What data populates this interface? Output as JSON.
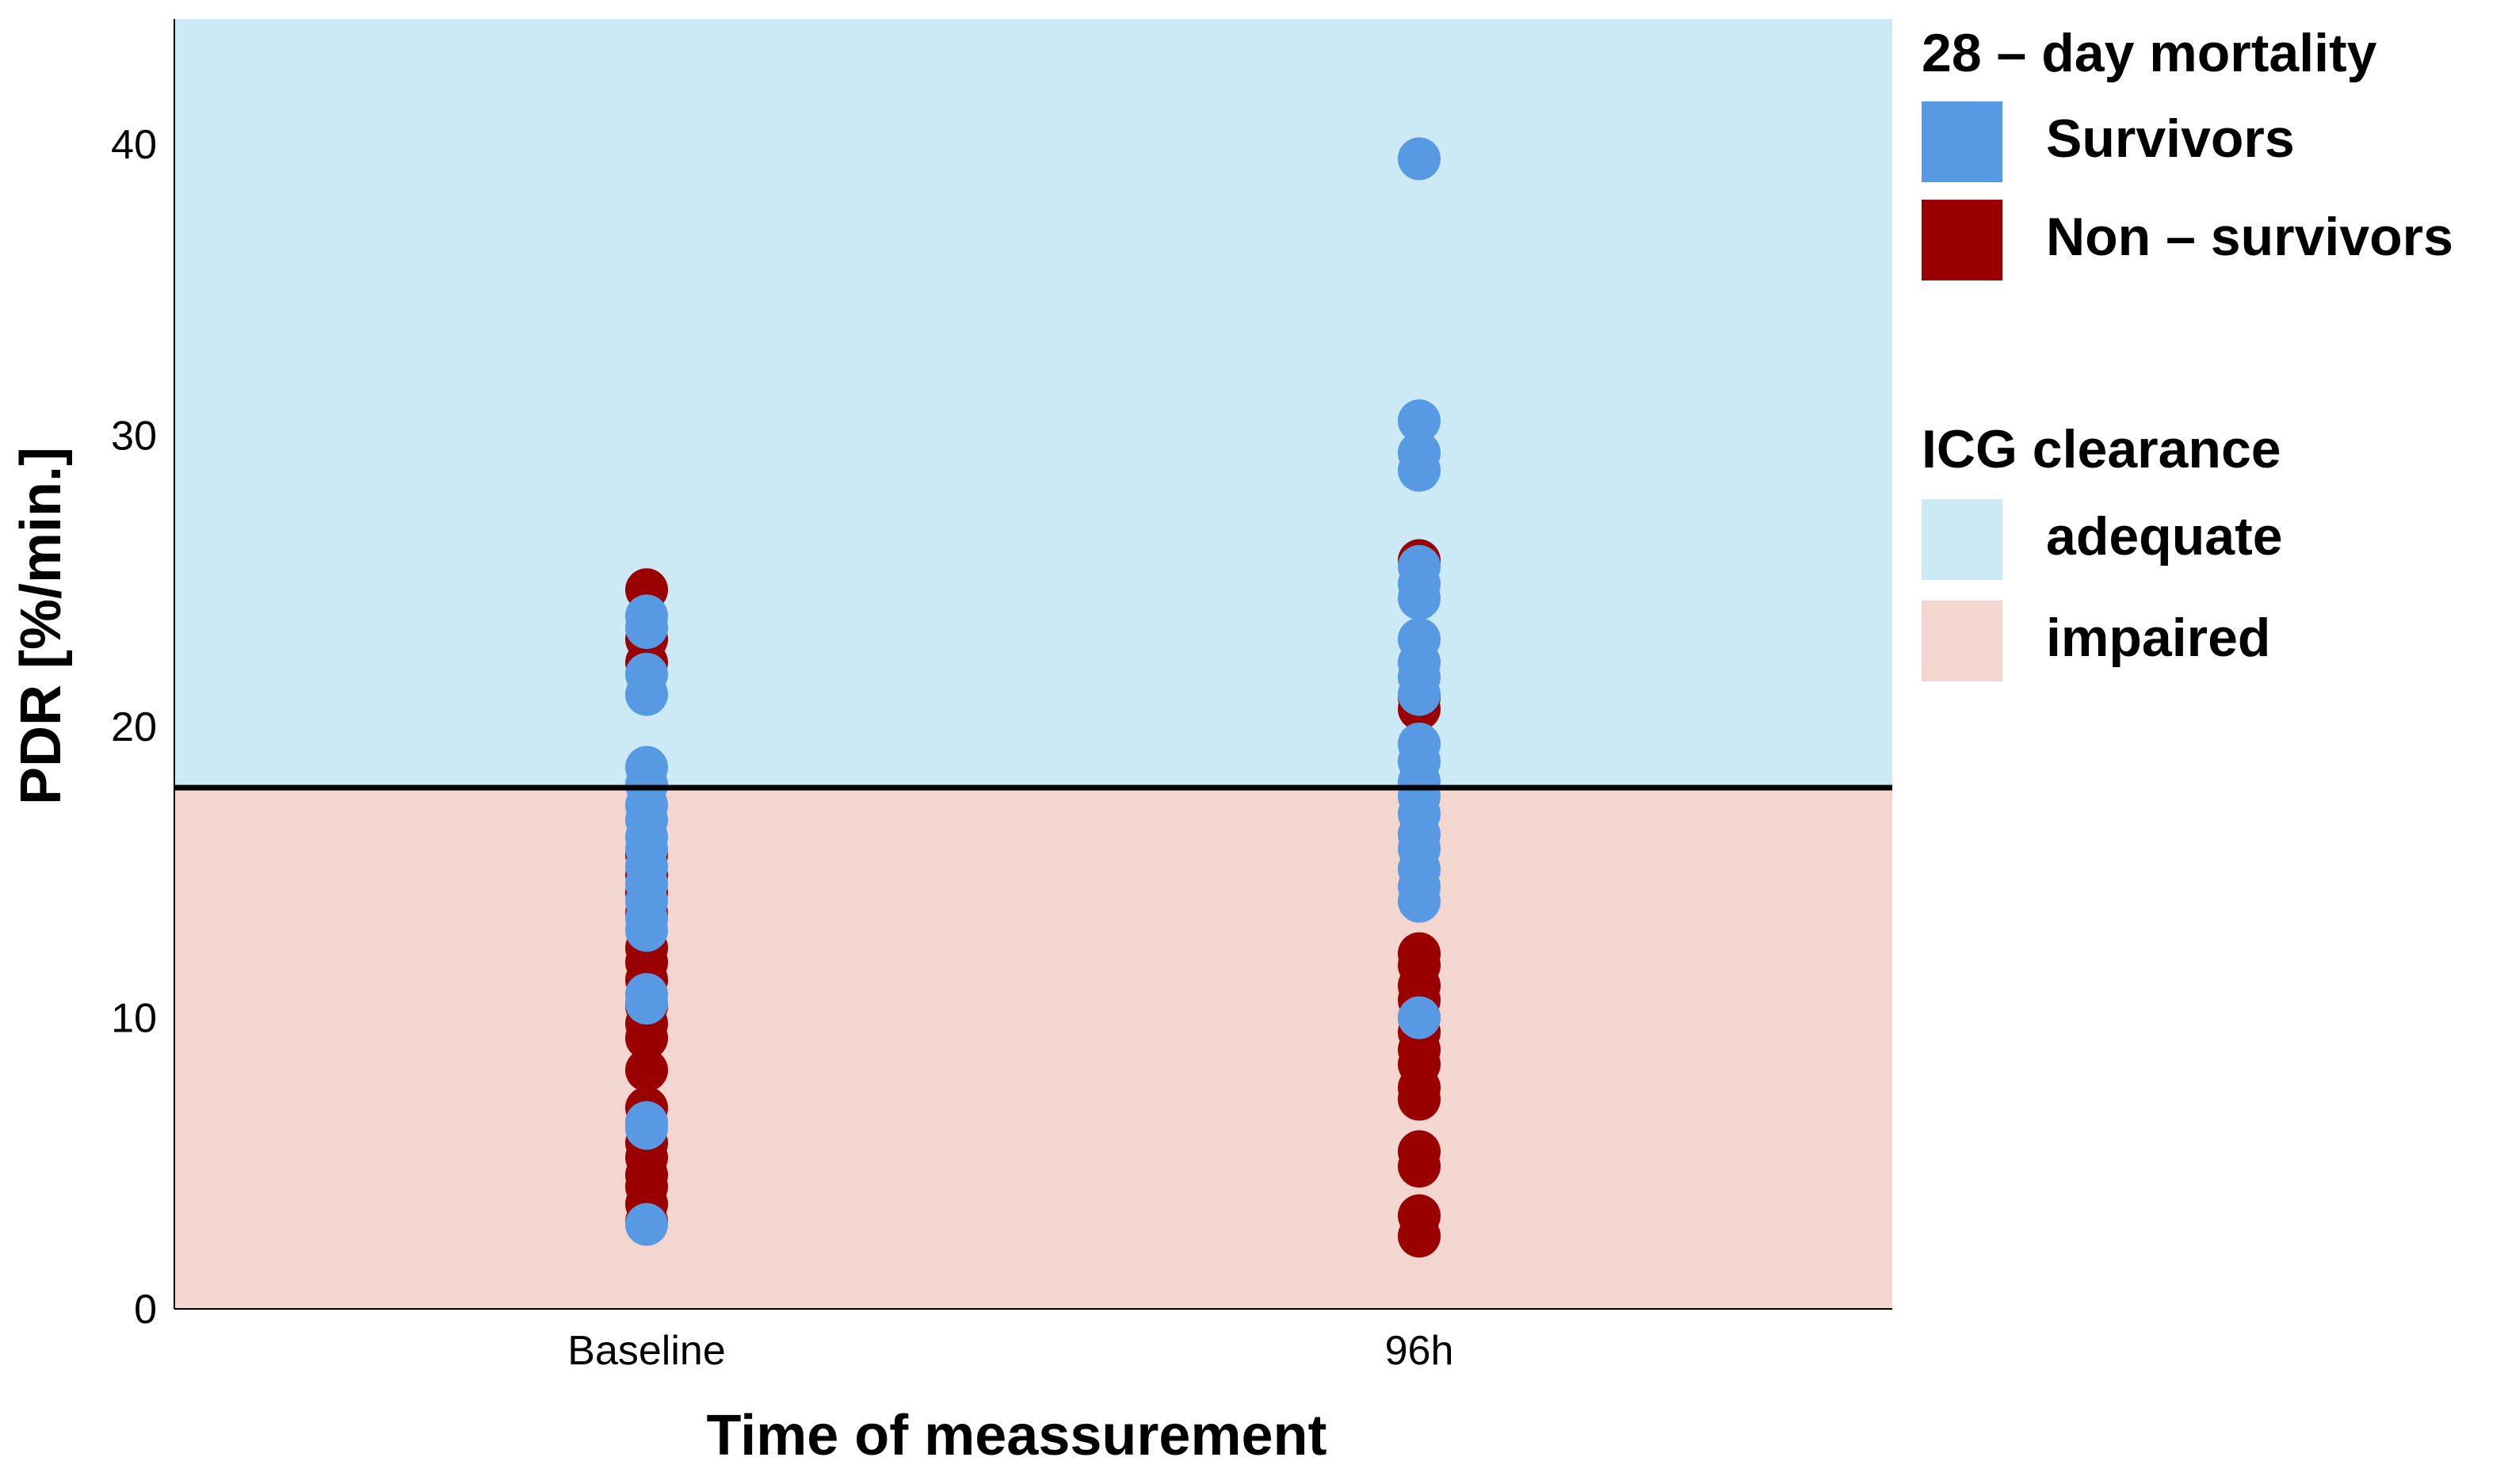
{
  "chart_data": {
    "type": "scatter",
    "xlabel": "Time of meassurement",
    "ylabel": "PDR [%/min.]",
    "categories": [
      "Baseline",
      "96h"
    ],
    "ylim": [
      0,
      44.3
    ],
    "yticks": [
      "0",
      "10",
      "20",
      "30",
      "40"
    ],
    "grid": false,
    "threshold": 17.9,
    "regions": [
      {
        "name": "adequate",
        "from": 17.9,
        "to": 44.3,
        "color": "#cce9f6"
      },
      {
        "name": "impaired",
        "from": 0,
        "to": 17.9,
        "color": "#f4d6d0"
      }
    ],
    "legend_position": "right",
    "legends": [
      {
        "title": "28 – day mortality",
        "items": [
          {
            "label": "Survivors",
            "color": "#5799e3"
          },
          {
            "label": "Non – survivors",
            "color": "#9b0000"
          }
        ]
      },
      {
        "title": "ICG clearance",
        "items": [
          {
            "label": "adequate",
            "color": "#cce9f6"
          },
          {
            "label": "impaired",
            "color": "#f4d6d0"
          }
        ]
      }
    ],
    "series": [
      {
        "name": "Non – survivors",
        "color": "#9b0000",
        "points": [
          {
            "x": "Baseline",
            "values": [
              24.7,
              23.0,
              22.2,
              15.6,
              14.9,
              14.3,
              13.6,
              12.4,
              11.9,
              11.3,
              10.4,
              9.8,
              9.3,
              8.2,
              6.9,
              6.4,
              5.7,
              5.2,
              4.6,
              4.2,
              3.6,
              3.0
            ]
          },
          {
            "x": "96h",
            "values": [
              25.7,
              21.0,
              20.6,
              12.2,
              11.8,
              11.1,
              10.6,
              10.0,
              9.5,
              8.9,
              8.4,
              7.6,
              7.2,
              5.4,
              4.9,
              3.2,
              2.5
            ]
          }
        ]
      },
      {
        "name": "Survivors",
        "color": "#5799e3",
        "points": [
          {
            "x": "Baseline",
            "values": [
              23.8,
              23.4,
              21.8,
              21.1,
              18.6,
              18.0,
              17.3,
              16.8,
              16.2,
              15.8,
              15.2,
              14.6,
              14.0,
              13.4,
              13.0,
              10.8,
              10.5,
              6.4,
              6.2,
              2.9
            ]
          },
          {
            "x": "96h",
            "values": [
              39.5,
              30.5,
              29.4,
              28.8,
              25.5,
              24.9,
              24.4,
              23.0,
              22.2,
              21.7,
              21.1,
              19.4,
              18.8,
              18.1,
              17.6,
              17.0,
              16.3,
              15.8,
              15.1,
              14.5,
              14.0,
              10.0
            ]
          }
        ]
      }
    ]
  }
}
